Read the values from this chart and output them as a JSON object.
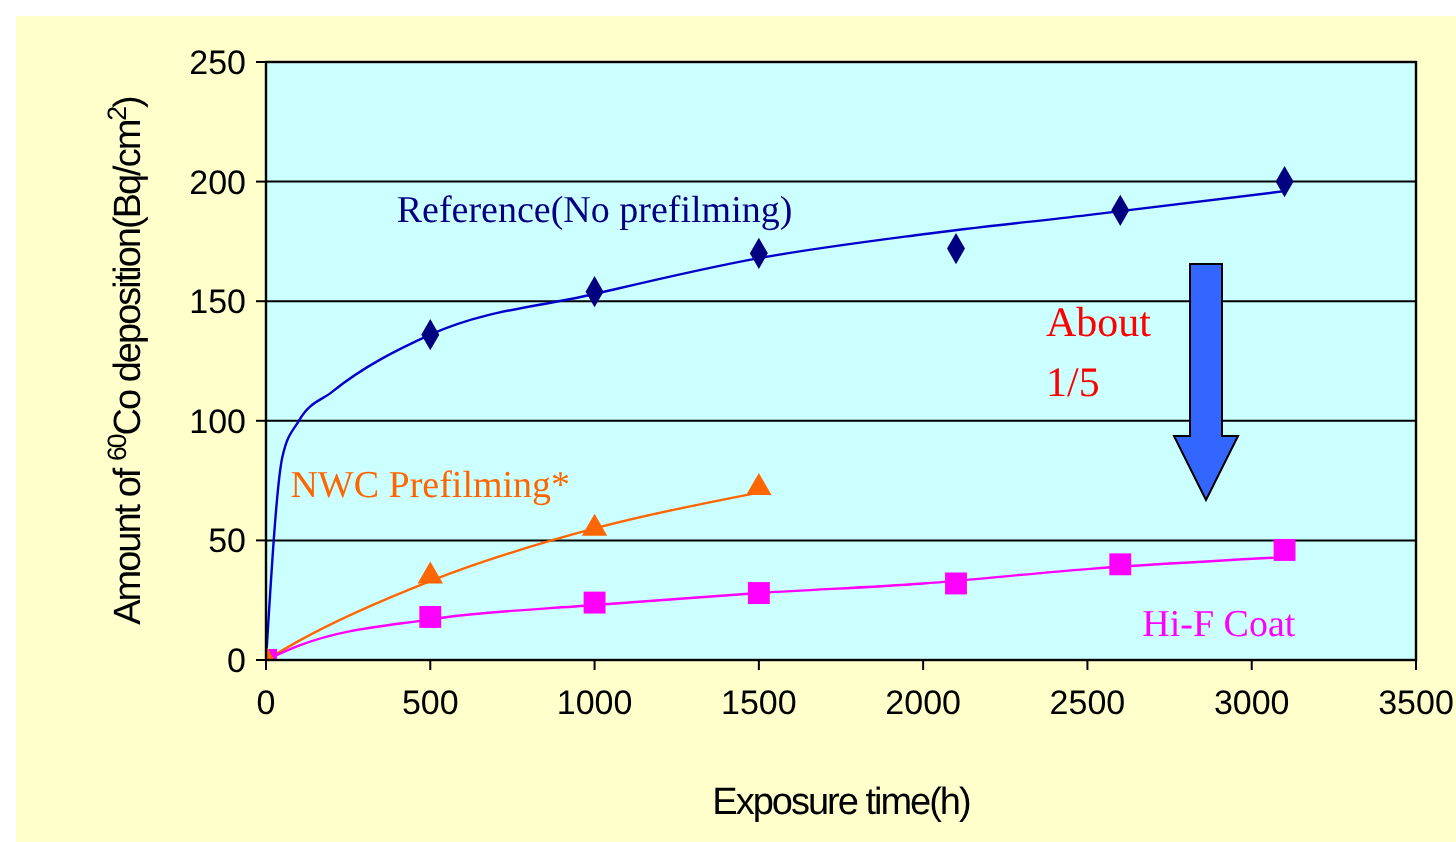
{
  "chart_data": {
    "type": "scatter",
    "xlabel": "Exposure time(h)",
    "ylabel": "Amount of $^{60}$Co deposition(Bq/cm$^{2}$)",
    "xlim": [
      0,
      3500
    ],
    "xticks": [
      0,
      500,
      1000,
      1500,
      2000,
      2500,
      3000,
      3500
    ],
    "ylim": [
      0,
      250
    ],
    "yticks": [
      0,
      50,
      100,
      150,
      200,
      250
    ],
    "grid": "y",
    "series": [
      {
        "name": "Reference(No prefilming)",
        "color": "#000080",
        "marker": "diamond",
        "x": [
          500,
          1000,
          1500,
          2100,
          2600,
          3100
        ],
        "values": [
          136,
          154,
          170,
          172,
          188,
          200
        ]
      },
      {
        "name": "Hi-F Coat",
        "color": "#ff00ff",
        "marker": "square",
        "x": [
          0,
          500,
          1000,
          1500,
          2100,
          2600,
          3100
        ],
        "values": [
          0,
          18,
          24,
          28,
          32,
          40,
          46
        ]
      },
      {
        "name": "NWC Prefilming*",
        "color": "#ff6600",
        "marker": "triangle",
        "x": [
          0,
          500,
          1000,
          1500
        ],
        "values": [
          0,
          35,
          55,
          72
        ]
      },
      {
        "type": "line",
        "color": "#0000cc",
        "marker": "none",
        "x": [
          0,
          50,
          100,
          200,
          500,
          1000,
          1500,
          2000,
          2500,
          3100
        ],
        "values": [
          0,
          85,
          100,
          112,
          136,
          153,
          168,
          178,
          186,
          196
        ]
      },
      {
        "type": "line",
        "color": "#ff6600",
        "marker": "none",
        "x": [
          0,
          100,
          500,
          1000,
          1500
        ],
        "values": [
          0,
          8,
          33,
          55,
          70
        ]
      },
      {
        "type": "line",
        "color": "#ff00ff",
        "marker": "none",
        "x": [
          0,
          100,
          500,
          1000,
          1500,
          2000,
          2500,
          3100
        ],
        "values": [
          0,
          6,
          17,
          23,
          28,
          32,
          38,
          43
        ]
      }
    ],
    "annotations": [
      "About 1/5"
    ]
  }
}
